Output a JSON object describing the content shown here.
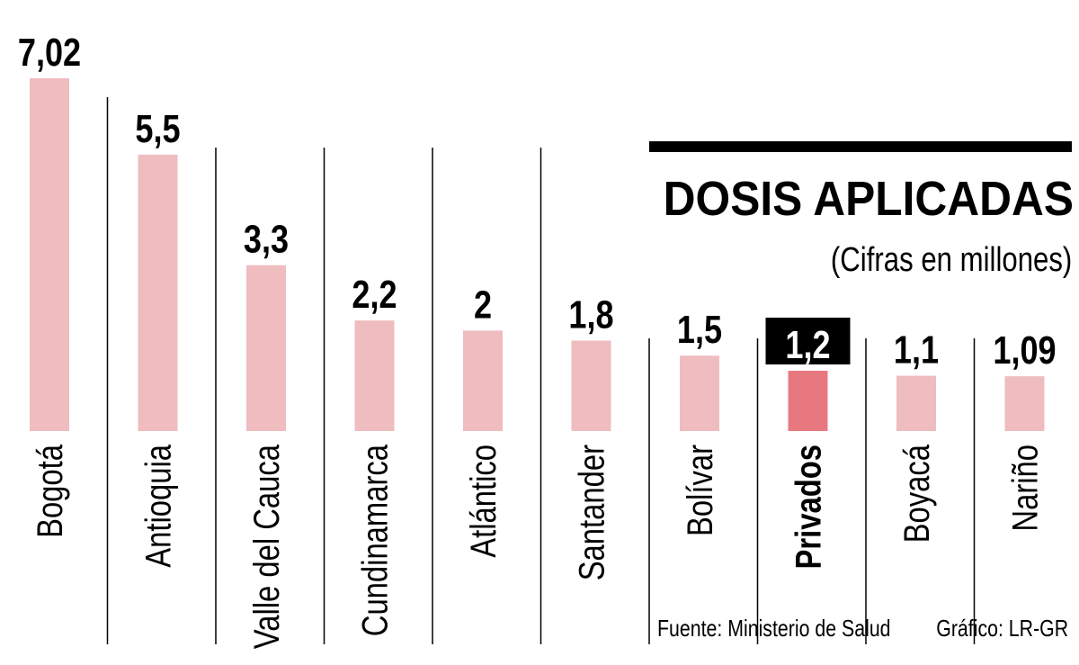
{
  "header": {
    "title": "DOSIS APLICADAS",
    "subtitle": "(Cifras en millones)"
  },
  "footer": {
    "source": "Fuente: Ministerio de Salud",
    "credit": "Gráfico: LR-GR"
  },
  "chart_data": {
    "type": "bar",
    "categories": [
      "Bogotá",
      "Antioquia",
      "Valle del Cauca",
      "Cundinamarca",
      "Atlántico",
      "Santander",
      "Bolívar",
      "Privados",
      "Boyacá",
      "Nariño"
    ],
    "values": [
      7.02,
      5.5,
      3.3,
      2.2,
      2,
      1.8,
      1.5,
      1.2,
      1.1,
      1.09
    ],
    "value_labels": [
      "7,02",
      "5,5",
      "3,3",
      "2,2",
      "2",
      "1,8",
      "1,5",
      "1,2",
      "1,1",
      "1,09"
    ],
    "highlight": "Privados",
    "ylim": [
      0,
      7.02
    ],
    "grid": false,
    "colors": {
      "bar": "#efbcbf",
      "highlight_bar": "#e87880",
      "highlight_label_bg": "#000000",
      "highlight_label_text": "#ffffff",
      "text": "#000000",
      "divider": "#000000"
    }
  }
}
